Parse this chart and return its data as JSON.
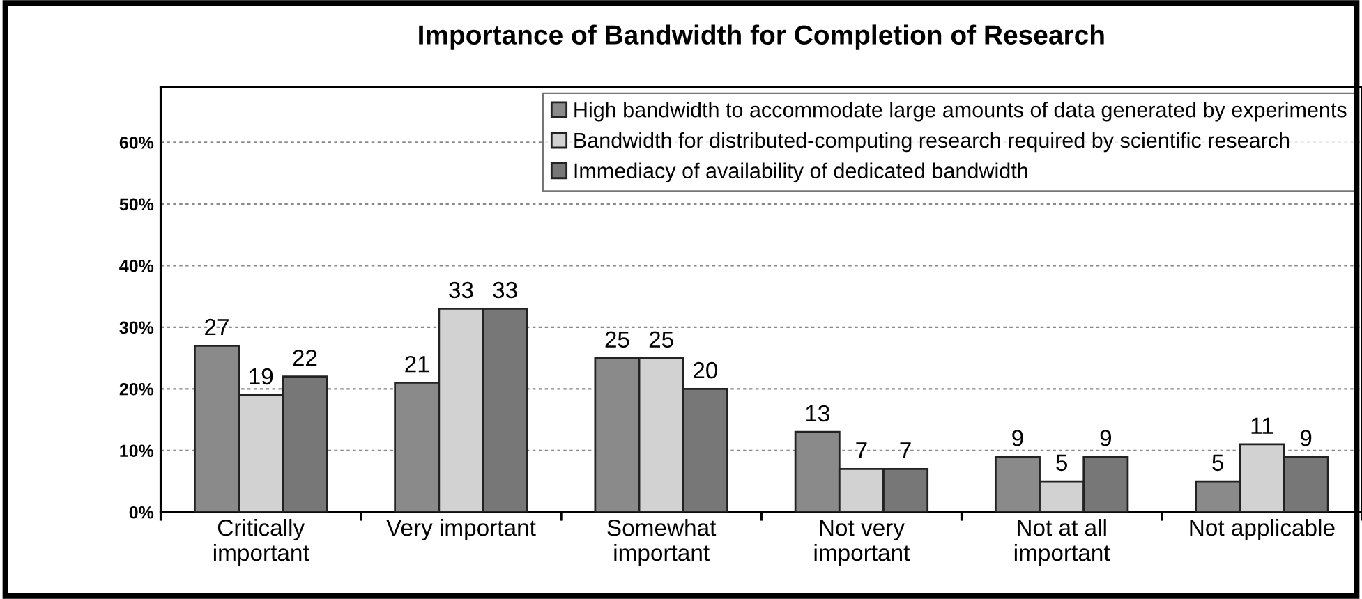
{
  "chart_data": {
    "type": "bar",
    "title": "Importance of Bandwidth for Completion of Research",
    "categories": [
      "Critically\nimportant",
      "Very important",
      "Somewhat\nimportant",
      "Not very\nimportant",
      "Not at all\nimportant",
      "Not applicable"
    ],
    "series": [
      {
        "name": "High bandwidth to accommodate large amounts of data generated by experiments",
        "color": "#8a8a8a",
        "values": [
          27,
          21,
          25,
          13,
          9,
          5
        ]
      },
      {
        "name": "Bandwidth for distributed-computing research required by scientific research",
        "color": "#d2d2d2",
        "values": [
          19,
          33,
          25,
          7,
          5,
          11
        ]
      },
      {
        "name": "Immediacy of availability of dedicated bandwidth",
        "color": "#777777",
        "values": [
          22,
          33,
          20,
          7,
          9,
          9
        ]
      }
    ],
    "ylim": [
      0,
      69
    ],
    "yticks": [
      {
        "value": 0,
        "label": "0%"
      },
      {
        "value": 10,
        "label": "10%"
      },
      {
        "value": 20,
        "label": "20%"
      },
      {
        "value": 30,
        "label": "30%"
      },
      {
        "value": 40,
        "label": "40%"
      },
      {
        "value": 50,
        "label": "50%"
      },
      {
        "value": 60,
        "label": "60%"
      }
    ],
    "grid": "y",
    "legend": "top right",
    "data_labels": true
  }
}
